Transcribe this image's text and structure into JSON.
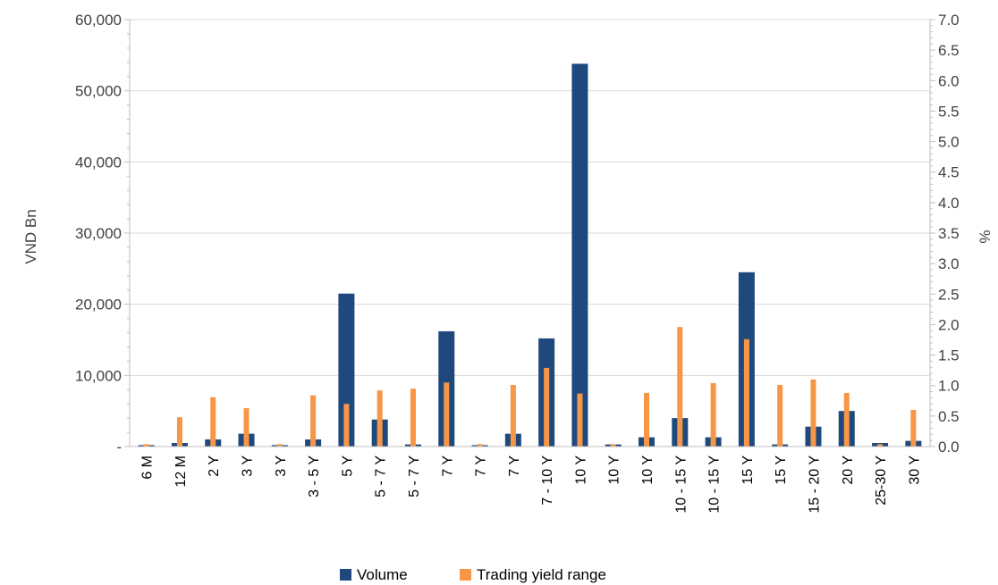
{
  "chart_data": {
    "type": "bar",
    "title": "",
    "xlabel": "",
    "ylabel": "VND Bn",
    "y2label": "%",
    "ylim": [
      0,
      60000
    ],
    "y2lim": [
      0,
      7.0
    ],
    "yticks": [
      "-",
      "10,000",
      "20,000",
      "30,000",
      "40,000",
      "50,000",
      "60,000"
    ],
    "y2ticks": [
      "0.0",
      "0.5",
      "1.0",
      "1.5",
      "2.0",
      "2.5",
      "3.0",
      "3.5",
      "4.0",
      "4.5",
      "5.0",
      "5.5",
      "6.0",
      "6.5",
      "7.0"
    ],
    "grid": true,
    "legend_position": "bottom",
    "categories": [
      "6 M",
      "12 M",
      "2 Y",
      "3 Y",
      "3 Y",
      "3 - 5 Y",
      "5 Y",
      "5 - 7 Y",
      "5 - 7 Y",
      "7 Y",
      "7 Y",
      "7 Y",
      "7 - 10 Y",
      "10 Y",
      "10 Y",
      "10 Y",
      "10 - 15 Y",
      "10 - 15 Y",
      "15 Y",
      "15 Y",
      "15 - 20 Y",
      "20 Y",
      "25-30 Y",
      "30 Y"
    ],
    "series": [
      {
        "name": "Volume",
        "axis": "left",
        "color": "#1f497d",
        "values": [
          200,
          500,
          1000,
          1800,
          200,
          1000,
          21500,
          3800,
          300,
          16200,
          200,
          1800,
          15200,
          53800,
          300,
          1300,
          4000,
          1300,
          24500,
          300,
          2800,
          5000,
          500,
          800
        ]
      },
      {
        "name": "Trading yield range",
        "axis": "right",
        "color": "#f79646",
        "values": [
          0.04,
          0.48,
          0.81,
          0.63,
          0.04,
          0.84,
          0.7,
          0.92,
          0.95,
          1.05,
          0.04,
          1.01,
          1.29,
          0.87,
          0.04,
          0.88,
          1.96,
          1.04,
          1.76,
          1.01,
          1.1,
          0.88,
          0.04,
          0.6
        ]
      }
    ]
  }
}
